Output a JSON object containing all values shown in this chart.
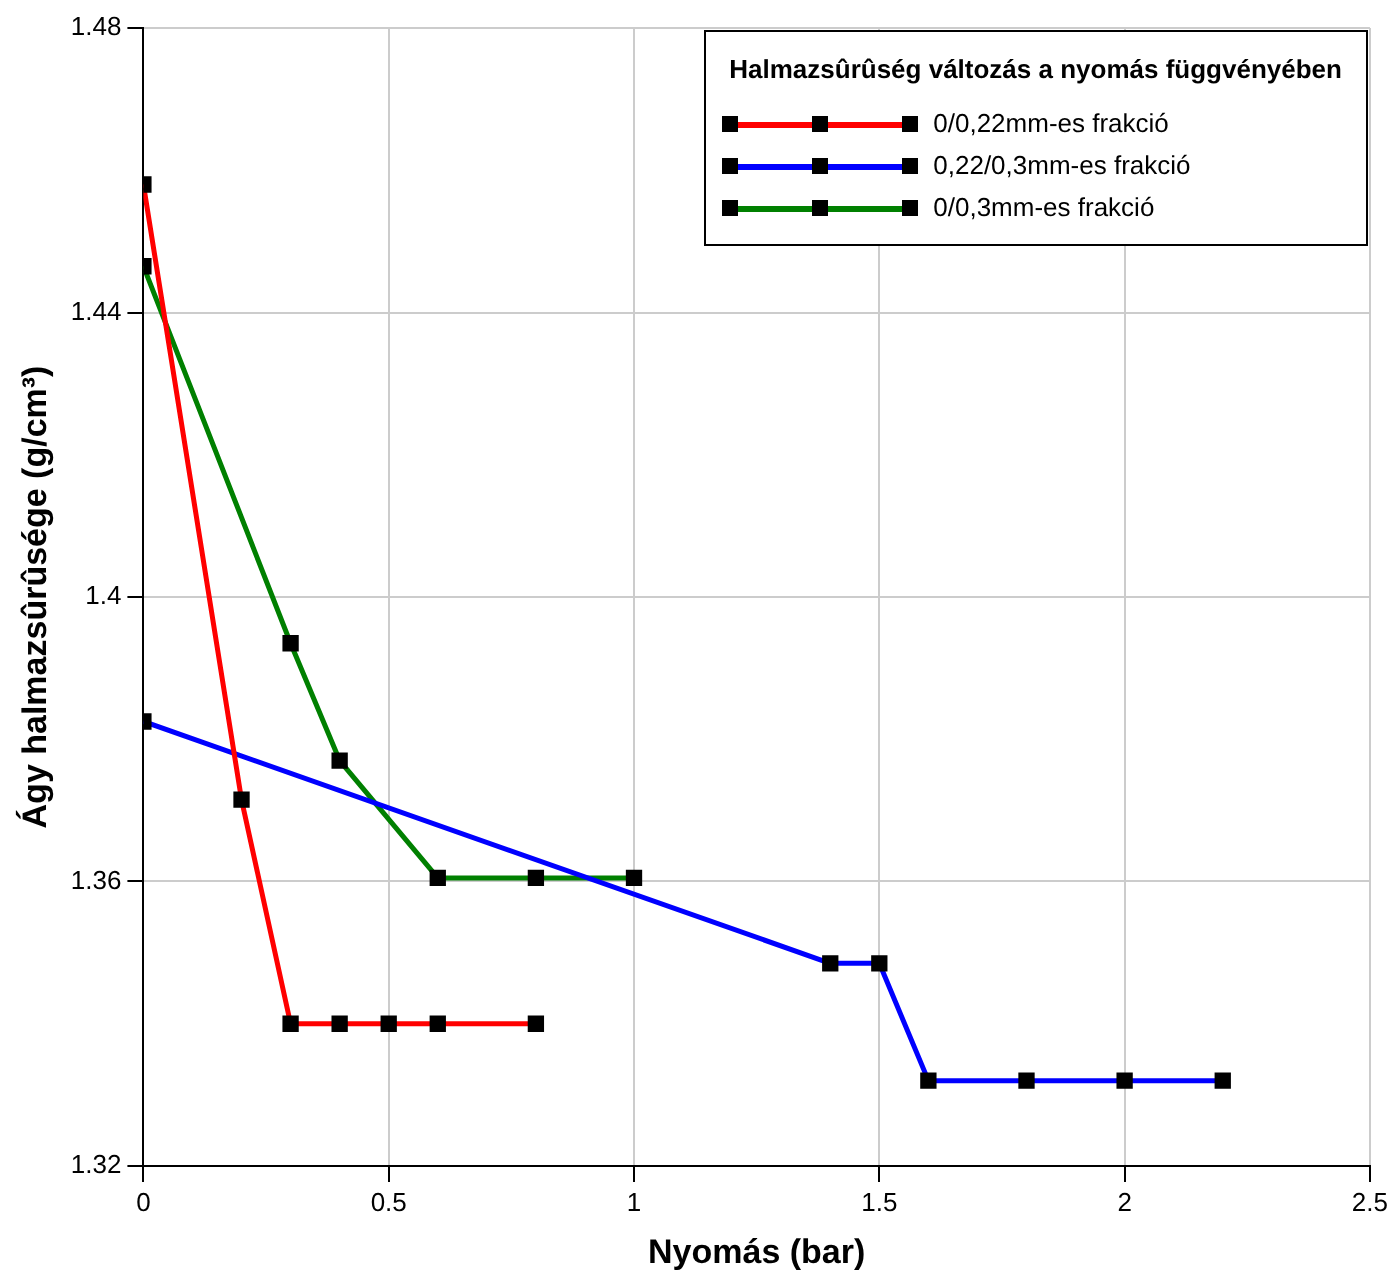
{
  "chart_data": {
    "type": "line",
    "xlabel": "Nyomás (bar)",
    "ylabel": "Ágy halmazsûrûsége (g/cm³)",
    "legend_title": "Halmazsûrûség változás a nyomás függvényében",
    "legend": "top right",
    "grid": true,
    "marker": "square",
    "line_style": "solid",
    "xlim": [
      0,
      2.5
    ],
    "xticks": [
      0,
      0.5,
      1,
      1.5,
      2,
      2.5
    ],
    "ylim": [
      1.32,
      1.48
    ],
    "yticks": [
      1.32,
      1.36,
      1.4,
      1.44,
      1.48
    ],
    "series": [
      {
        "name": "0/0,22mm-es frakció",
        "color": "#ff0000",
        "x": [
          0,
          0.2,
          0.3,
          0.4,
          0.5,
          0.6,
          0.8
        ],
        "values": [
          1.458,
          1.3715,
          1.34,
          1.34,
          1.34,
          1.34,
          1.34
        ]
      },
      {
        "name": "0,22/0,3mm-es frakció",
        "color": "#0000ff",
        "x": [
          0,
          1.4,
          1.5,
          1.6,
          1.8,
          2,
          2.2
        ],
        "values": [
          1.3825,
          1.3485,
          1.3485,
          1.332,
          1.332,
          1.332,
          1.332
        ]
      },
      {
        "name": "0/0,3mm-es frakció",
        "color": "#008000",
        "x": [
          0,
          0.3,
          0.4,
          0.6,
          0.8,
          1
        ],
        "values": [
          1.4465,
          1.3935,
          1.377,
          1.3605,
          1.3605,
          1.3605
        ]
      }
    ]
  }
}
